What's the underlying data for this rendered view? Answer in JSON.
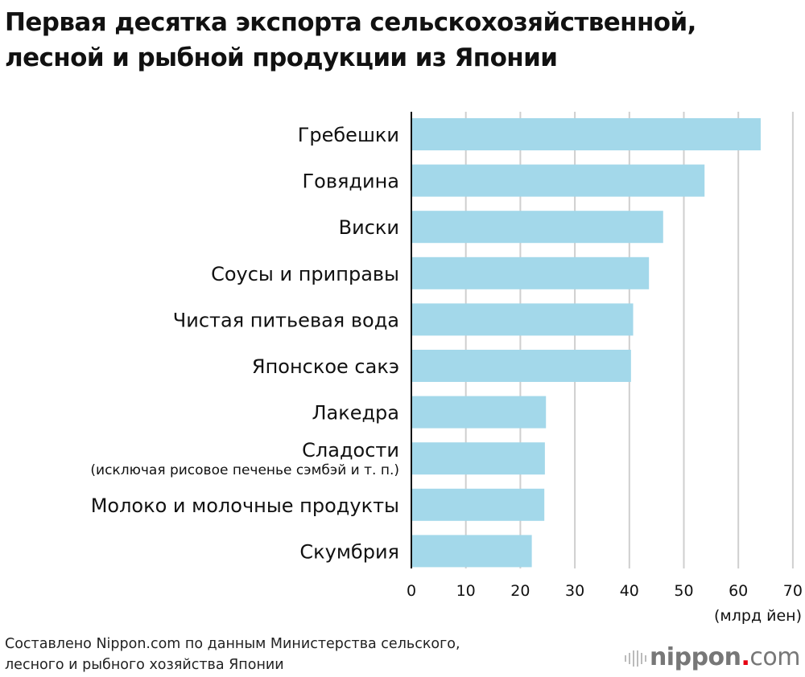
{
  "chart_data": {
    "type": "bar",
    "orientation": "horizontal",
    "title_lines": [
      "Первая десятка экспорта сельскохозяйственной,",
      "лесной и рыбной продукции из Японии"
    ],
    "categories": [
      {
        "label": "Гребешки",
        "sub": ""
      },
      {
        "label": "Говядина",
        "sub": ""
      },
      {
        "label": "Виски",
        "sub": ""
      },
      {
        "label": "Соусы и приправы",
        "sub": ""
      },
      {
        "label": "Чистая питьевая вода",
        "sub": ""
      },
      {
        "label": "Японское сакэ",
        "sub": ""
      },
      {
        "label": "Лакедра",
        "sub": ""
      },
      {
        "label": "Сладости",
        "sub": "(исключая рисовое печенье сэмбэй и т. п.)"
      },
      {
        "label": "Молоко и молочные продукты",
        "sub": ""
      },
      {
        "label": "Скумбрия",
        "sub": ""
      }
    ],
    "values": [
      64.1,
      53.8,
      46.2,
      43.6,
      40.7,
      40.3,
      24.7,
      24.5,
      24.4,
      22.1
    ],
    "xlim": [
      0,
      70
    ],
    "xticks": [
      "0",
      "10",
      "20",
      "30",
      "40",
      "50",
      "60",
      "70"
    ],
    "xlabel": "(млрд йен)",
    "grid": true,
    "bar_color": "#a3d8ea"
  },
  "source_lines": [
    "Составлено Nippon.com по данным Министерства сельского,",
    "лесного и рыбного хозяйства Японии"
  ],
  "logo": {
    "name": "nippon",
    "dot": ".",
    "suffix": "com"
  }
}
